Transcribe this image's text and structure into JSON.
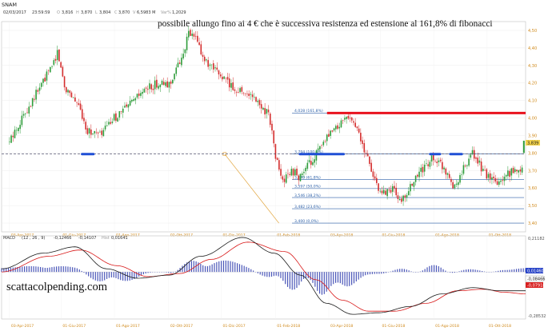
{
  "header": {
    "symbol": "SNAM",
    "date": "02/03/2017",
    "time": "23:59:59",
    "o_label": "O",
    "o": "3,816",
    "h_label": "H",
    "h": "3,870",
    "l_label": "L",
    "l": "3,804",
    "c_label": "C",
    "c": "3,870",
    "v_label": "V",
    "v": "6,5983 M",
    "var_label": "Var%",
    "var": "1,2029"
  },
  "annotation": "possibile allungo fino ai 4 € che è successiva resistenza ed estensione al 161,8% di fibonacci",
  "watermark": "scattacolpending.com",
  "macd": {
    "title": "MACD",
    "params": "(12 , 26 , 9)",
    "value1": "-0,12466",
    "value2": "-0,14107",
    "hist_label": "Hist",
    "hist": "0,01641"
  },
  "colors": {
    "up": "#2e9c3a",
    "down": "#d42d2d",
    "resistance": "#e8121e",
    "support": "#1f4fd6",
    "fib": "#2b5fa8",
    "macd_line": "#1a1a1a",
    "signal_line": "#d81818",
    "histogram": "#4a56b8",
    "last_price_badge": "#f2d24b",
    "macd_badge": "#2a45c8",
    "signal_badge": "#d82020"
  },
  "chart_data": [
    {
      "type": "candlestick",
      "ylim": [
        3.35,
        4.55
      ],
      "y_ticks": [
        "4,50",
        "4,40",
        "4,30",
        "4,20",
        "4,10",
        "4,00",
        "3,90",
        "3,80",
        "3,70",
        "3,60",
        "3,50",
        "3,40"
      ],
      "x_ticks": [
        "03-Apr-2017",
        "01-Giu-2017",
        "01-Ago-2017",
        "02-Ott-2017",
        "01-Dic-2017",
        "01-Feb-2018",
        "03-Apr-2018",
        "01-Giu-2018",
        "01-Ago-2018",
        "01-Ott-2018"
      ],
      "anchors": [
        [
          "03-Apr-2017",
          3.86
        ],
        [
          "15-Apr-2017",
          3.98
        ],
        [
          "01-Mag-2017",
          4.12
        ],
        [
          "20-Mag-2017",
          4.28
        ],
        [
          "28-Mag-2017",
          4.38
        ],
        [
          "05-Giu-2017",
          4.18
        ],
        [
          "15-Giu-2017",
          4.12
        ],
        [
          "25-Giu-2017",
          4.02
        ],
        [
          "01-Lug-2017",
          3.93
        ],
        [
          "15-Lug-2017",
          3.9
        ],
        [
          "01-Ago-2017",
          4.0
        ],
        [
          "20-Ago-2017",
          4.08
        ],
        [
          "05-Set-2017",
          4.16
        ],
        [
          "20-Set-2017",
          4.2
        ],
        [
          "01-Ott-2017",
          4.18
        ],
        [
          "15-Ott-2017",
          4.32
        ],
        [
          "25-Ott-2017",
          4.48
        ],
        [
          "01-Nov-2017",
          4.46
        ],
        [
          "15-Nov-2017",
          4.3
        ],
        [
          "01-Dic-2017",
          4.24
        ],
        [
          "15-Dic-2017",
          4.17
        ],
        [
          "01-Gen-2018",
          4.14
        ],
        [
          "15-Gen-2018",
          4.07
        ],
        [
          "25-Gen-2018",
          4.02
        ],
        [
          "01-Feb-2018",
          3.78
        ],
        [
          "10-Feb-2018",
          3.63
        ],
        [
          "20-Feb-2018",
          3.7
        ],
        [
          "01-Mar-2018",
          3.66
        ],
        [
          "15-Mar-2018",
          3.76
        ],
        [
          "01-Apr-2018",
          3.88
        ],
        [
          "15-Apr-2018",
          3.96
        ],
        [
          "25-Apr-2018",
          4.02
        ],
        [
          "05-Mag-2018",
          3.94
        ],
        [
          "15-Mag-2018",
          3.8
        ],
        [
          "01-Giu-2018",
          3.56
        ],
        [
          "15-Giu-2018",
          3.6
        ],
        [
          "25-Giu-2018",
          3.52
        ],
        [
          "05-Lug-2018",
          3.6
        ],
        [
          "15-Lug-2018",
          3.68
        ],
        [
          "01-Ago-2018",
          3.78
        ],
        [
          "15-Ago-2018",
          3.7
        ],
        [
          "25-Ago-2018",
          3.6
        ],
        [
          "05-Set-2018",
          3.72
        ],
        [
          "15-Set-2018",
          3.8
        ],
        [
          "01-Ott-2018",
          3.66
        ],
        [
          "15-Ott-2018",
          3.62
        ],
        [
          "25-Ott-2018",
          3.68
        ],
        [
          "10-Nov-2018",
          3.72
        ]
      ],
      "last_price": "3,839",
      "resistance": {
        "from": "01-Apr-2018",
        "to": "14-Nov-2018",
        "value": 4.028
      },
      "support_line": {
        "value": 3.794,
        "style": "dashed"
      },
      "support_marks": [
        {
          "from": "25-Giu-2017",
          "to": "08-Lug-2017"
        },
        {
          "from": "01-Mar-2018",
          "to": "20-Apr-2018"
        },
        {
          "from": "28-Lug-2018",
          "to": "08-Ago-2018"
        },
        {
          "from": "20-Ago-2018",
          "to": "02-Set-2018"
        }
      ],
      "fibonacci": [
        {
          "label": "4,028 (161,8%)",
          "value": 4.028
        },
        {
          "label": "3,794 (100,0%)",
          "value": 3.794
        },
        {
          "label": "3,649 (61,8%)",
          "value": 3.649
        },
        {
          "label": "3,597 (50,0%)",
          "value": 3.597
        },
        {
          "label": "3,546 (38,2%)",
          "value": 3.546
        },
        {
          "label": "3,482 (23,6%)",
          "value": 3.482
        },
        {
          "label": "3,400 (0,0%)",
          "value": 3.4
        }
      ],
      "fib_connector": [
        [
          "05-Dic-2017",
          3.794
        ],
        [
          "05-Feb-2018",
          3.4
        ]
      ]
    },
    {
      "type": "line",
      "title": "MACD (12 , 26 , 9)",
      "ylim": [
        -0.3,
        0.23
      ],
      "y_ticks": [
        "0,21182",
        "-0,28532"
      ],
      "x_ticks": [
        "03-Apr-2017",
        "01-Giu-2017",
        "01-Ago-2017",
        "02-Ott-2017",
        "01-Dic-2017",
        "01-Feb-2018",
        "03-Apr-2018",
        "01-Giu-2018",
        "01-Ago-2018",
        "01-Ott-2018"
      ],
      "series": [
        {
          "anchors": [
            [
              0.0,
              0.02
            ],
            [
              0.08,
              0.12
            ],
            [
              0.14,
              0.16
            ],
            [
              0.2,
              0.02
            ],
            [
              0.26,
              -0.04
            ],
            [
              0.32,
              -0.02
            ],
            [
              0.38,
              0.1
            ],
            [
              0.46,
              0.22
            ],
            [
              0.52,
              0.12
            ],
            [
              0.57,
              -0.02
            ],
            [
              0.62,
              -0.2
            ],
            [
              0.67,
              -0.27
            ],
            [
              0.72,
              -0.26
            ],
            [
              0.78,
              -0.22
            ],
            [
              0.84,
              -0.14
            ],
            [
              0.9,
              -0.1
            ],
            [
              0.95,
              -0.12
            ],
            [
              1.0,
              -0.12
            ]
          ]
        },
        {
          "anchors": [
            [
              0.0,
              0.0
            ],
            [
              0.09,
              0.1
            ],
            [
              0.15,
              0.14
            ],
            [
              0.22,
              0.04
            ],
            [
              0.28,
              -0.03
            ],
            [
              0.34,
              -0.01
            ],
            [
              0.4,
              0.08
            ],
            [
              0.47,
              0.19
            ],
            [
              0.54,
              0.13
            ],
            [
              0.6,
              -0.05
            ],
            [
              0.65,
              -0.18
            ],
            [
              0.7,
              -0.25
            ],
            [
              0.75,
              -0.25
            ],
            [
              0.81,
              -0.2
            ],
            [
              0.87,
              -0.12
            ],
            [
              0.92,
              -0.11
            ],
            [
              0.96,
              -0.13
            ],
            [
              1.0,
              -0.14
            ]
          ]
        }
      ],
      "last_values": {
        "macd": "0,01460",
        "signal": "-0,08466",
        "other": "-0,07918"
      }
    }
  ]
}
